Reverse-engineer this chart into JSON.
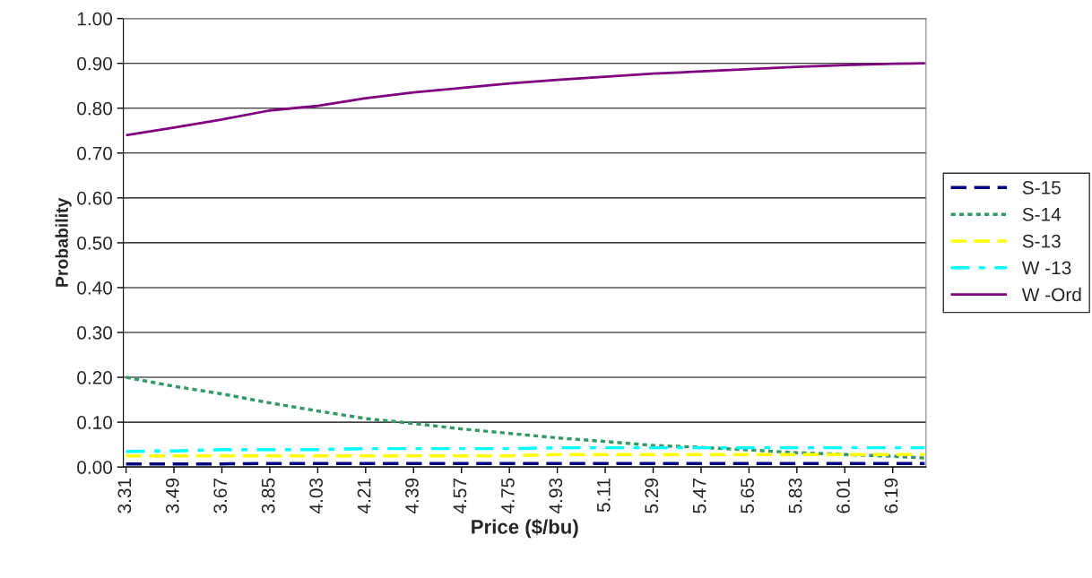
{
  "chart_data": {
    "type": "line",
    "xlabel": "Price ($/bu)",
    "ylabel": "Probability",
    "x": [
      3.31,
      3.49,
      3.67,
      3.85,
      4.03,
      4.21,
      4.39,
      4.57,
      4.75,
      4.93,
      5.11,
      5.29,
      5.47,
      5.65,
      5.83,
      6.01,
      6.19,
      6.31
    ],
    "series": [
      {
        "name": "S-15",
        "color": "#000080",
        "line_style": "dashed",
        "values": [
          0.007,
          0.007,
          0.007,
          0.008,
          0.008,
          0.008,
          0.008,
          0.008,
          0.008,
          0.008,
          0.008,
          0.008,
          0.008,
          0.008,
          0.008,
          0.008,
          0.008,
          0.008
        ]
      },
      {
        "name": "S-14",
        "color": "#339966",
        "line_style": "dotted",
        "values": [
          0.2,
          0.18,
          0.163,
          0.143,
          0.125,
          0.108,
          0.097,
          0.085,
          0.075,
          0.065,
          0.057,
          0.048,
          0.044,
          0.038,
          0.032,
          0.028,
          0.024,
          0.02
        ]
      },
      {
        "name": "S-13",
        "color": "#ffff00",
        "line_style": "dashed",
        "values": [
          0.025,
          0.025,
          0.025,
          0.025,
          0.025,
          0.025,
          0.025,
          0.025,
          0.025,
          0.028,
          0.028,
          0.028,
          0.028,
          0.028,
          0.028,
          0.028,
          0.028,
          0.028
        ]
      },
      {
        "name": "W -13",
        "color": "#00ffff",
        "line_style": "dashdot",
        "values": [
          0.035,
          0.036,
          0.039,
          0.039,
          0.039,
          0.041,
          0.041,
          0.041,
          0.041,
          0.043,
          0.043,
          0.043,
          0.043,
          0.043,
          0.043,
          0.043,
          0.043,
          0.043
        ]
      },
      {
        "name": "W -Ord",
        "color": "#800080",
        "line_style": "solid",
        "values": [
          0.74,
          0.757,
          0.775,
          0.795,
          0.805,
          0.822,
          0.835,
          0.845,
          0.855,
          0.863,
          0.87,
          0.877,
          0.882,
          0.887,
          0.892,
          0.896,
          0.899,
          0.9
        ]
      }
    ],
    "xlim": [
      3.3,
      6.315
    ],
    "xticks": [
      3.31,
      3.49,
      3.67,
      3.85,
      4.03,
      4.21,
      4.39,
      4.57,
      4.75,
      4.93,
      5.11,
      5.29,
      5.47,
      5.65,
      5.83,
      6.01,
      6.19
    ],
    "ylim": [
      0,
      1
    ],
    "yticks": [
      {
        "value": 0,
        "label": "0.00"
      },
      {
        "value": 0.1,
        "label": "0.10"
      },
      {
        "value": 0.2,
        "label": "0.20"
      },
      {
        "value": 0.3,
        "label": "0.30"
      },
      {
        "value": 0.4,
        "label": "0.40"
      },
      {
        "value": 0.5,
        "label": "0.50"
      },
      {
        "value": 0.6,
        "label": "0.60"
      },
      {
        "value": 0.7,
        "label": "0.70"
      },
      {
        "value": 0.8,
        "label": "0.80"
      },
      {
        "value": 0.9,
        "label": "0.90"
      },
      {
        "value": 1,
        "label": "1.00"
      }
    ],
    "grid": "y",
    "legend": "right"
  }
}
